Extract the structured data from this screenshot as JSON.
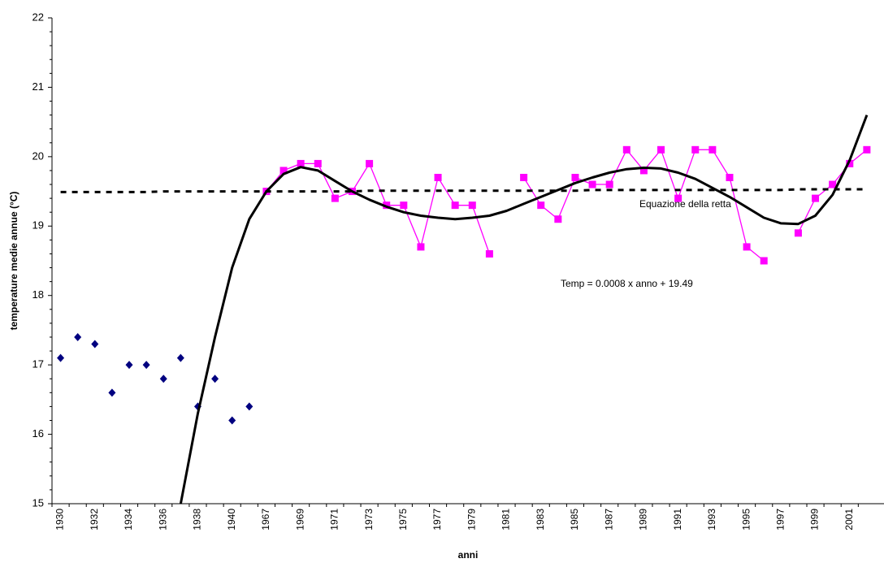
{
  "chart_data": {
    "type": "line",
    "y_label": "temperature medie annue (°C)",
    "x_label": "anni",
    "categories": [
      "1930",
      null,
      "1932",
      null,
      "1934",
      null,
      "1936",
      null,
      "1938",
      null,
      "1940",
      null,
      "1967",
      null,
      "1969",
      null,
      "1971",
      null,
      "1973",
      null,
      "1975",
      null,
      "1977",
      null,
      "1979",
      null,
      "1981",
      null,
      "1983",
      null,
      "1985",
      null,
      "1987",
      null,
      "1989",
      null,
      "1991",
      null,
      "1993",
      null,
      "1995",
      null,
      "1997",
      null,
      "1999",
      null,
      "2001",
      null
    ],
    "series": [
      {
        "color": "#000080",
        "marker": "diamond",
        "line": false,
        "values": [
          17.1,
          17.4,
          17.3,
          16.6,
          17.0,
          17.0,
          16.8,
          17.1,
          16.4,
          16.8,
          16.2,
          16.4,
          null,
          null,
          null,
          null,
          null,
          null,
          null,
          null,
          null,
          null,
          null,
          null,
          null,
          null,
          null,
          null,
          null,
          null,
          null,
          null,
          null,
          null,
          null,
          null,
          null,
          null,
          null,
          null,
          null,
          null,
          null,
          null,
          null,
          null,
          null,
          null
        ]
      },
      {
        "color": "#ff00ff",
        "marker": "square",
        "line": true,
        "values": [
          null,
          null,
          null,
          null,
          null,
          null,
          null,
          null,
          null,
          null,
          null,
          null,
          19.5,
          19.8,
          19.9,
          19.9,
          19.4,
          19.5,
          19.9,
          19.3,
          19.3,
          18.7,
          19.7,
          19.3,
          19.3,
          18.6,
          null,
          19.7,
          19.3,
          19.1,
          19.7,
          19.6,
          19.6,
          20.1,
          19.8,
          20.1,
          19.4,
          20.1,
          20.1,
          19.7,
          18.7,
          18.5,
          null,
          18.9,
          19.4,
          19.6,
          19.9,
          20.1
        ]
      },
      {
        "color": "#000000",
        "marker": "none",
        "line": true,
        "dash": true,
        "values": [
          19.49,
          19.49,
          19.49,
          19.49,
          19.49,
          19.49,
          19.5,
          19.5,
          19.5,
          19.5,
          19.5,
          19.5,
          19.5,
          19.5,
          19.5,
          19.5,
          19.5,
          19.5,
          19.51,
          19.51,
          19.51,
          19.51,
          19.51,
          19.51,
          19.51,
          19.51,
          19.51,
          19.51,
          19.51,
          19.51,
          19.51,
          19.52,
          19.52,
          19.52,
          19.52,
          19.52,
          19.52,
          19.52,
          19.52,
          19.52,
          19.52,
          19.52,
          19.52,
          19.53,
          19.53,
          19.53,
          19.53,
          19.53
        ]
      },
      {
        "color": "#000000",
        "marker": "none",
        "line": true,
        "dash": false,
        "values": [
          null,
          null,
          null,
          null,
          null,
          null,
          null,
          15.0,
          16.3,
          17.4,
          18.4,
          19.1,
          19.5,
          19.75,
          19.85,
          19.8,
          19.65,
          19.5,
          19.38,
          19.28,
          19.2,
          19.15,
          19.12,
          19.1,
          19.12,
          19.15,
          19.22,
          19.32,
          19.42,
          19.52,
          19.62,
          19.7,
          19.77,
          19.82,
          19.84,
          19.83,
          19.77,
          19.68,
          19.55,
          19.42,
          19.27,
          19.12,
          19.04,
          19.03,
          19.15,
          19.45,
          19.95,
          20.6
        ]
      }
    ],
    "annotations": [
      "Equazione della retta",
      "Temp = 0.0008 x  anno + 19.49"
    ],
    "ylim": [
      15,
      22
    ],
    "yticks": [
      15,
      16,
      17,
      18,
      19,
      20,
      21,
      22
    ],
    "grid": false
  }
}
